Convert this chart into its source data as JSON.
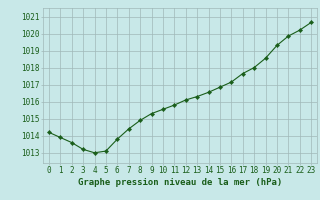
{
  "x": [
    0,
    1,
    2,
    3,
    4,
    5,
    6,
    7,
    8,
    9,
    10,
    11,
    12,
    13,
    14,
    15,
    16,
    17,
    18,
    19,
    20,
    21,
    22,
    23
  ],
  "y": [
    1014.2,
    1013.9,
    1013.6,
    1013.2,
    1013.0,
    1013.1,
    1013.8,
    1014.4,
    1014.9,
    1015.3,
    1015.55,
    1015.8,
    1016.1,
    1016.3,
    1016.55,
    1016.85,
    1017.15,
    1017.65,
    1018.0,
    1018.55,
    1019.3,
    1019.85,
    1020.2,
    1020.65
  ],
  "line_color": "#1a5e1a",
  "marker": "D",
  "marker_size": 2.2,
  "bg_color": "#c8e8e8",
  "grid_color": "#a0b8b8",
  "xlabel": "Graphe pression niveau de la mer (hPa)",
  "xlabel_color": "#1a5e1a",
  "xlabel_fontsize": 6.5,
  "tick_color": "#1a5e1a",
  "tick_fontsize": 5.5,
  "ylim": [
    1012.4,
    1021.5
  ],
  "yticks": [
    1013,
    1014,
    1015,
    1016,
    1017,
    1018,
    1019,
    1020,
    1021
  ],
  "xlim": [
    -0.5,
    23.5
  ],
  "xticks": [
    0,
    1,
    2,
    3,
    4,
    5,
    6,
    7,
    8,
    9,
    10,
    11,
    12,
    13,
    14,
    15,
    16,
    17,
    18,
    19,
    20,
    21,
    22,
    23
  ]
}
